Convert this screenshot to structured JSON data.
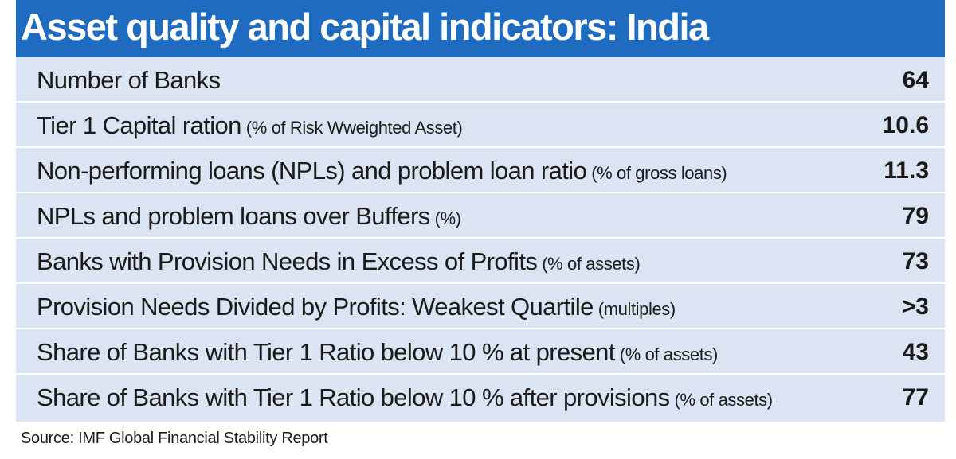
{
  "chart_data": {
    "type": "table",
    "title": "Asset quality and capital indicators: India",
    "rows": [
      {
        "label": "Number of Banks",
        "note": "",
        "value": "64"
      },
      {
        "label": "Tier 1 Capital ration",
        "note": "(% of Risk Wweighted Asset)",
        "value": "10.6"
      },
      {
        "label": "Non-performing loans (NPLs) and problem loan ratio",
        "note": "(% of gross loans)",
        "value": "11.3"
      },
      {
        "label": "NPLs and problem loans over Buffers",
        "note": "(%)",
        "value": "79"
      },
      {
        "label": "Banks with Provision Needs in Excess of Profits",
        "note": "(% of assets)",
        "value": "73"
      },
      {
        "label": "Provision Needs Divided by Profits: Weakest Quartile",
        "note": "(multiples)",
        "value": ">3"
      },
      {
        "label": "Share of Banks with Tier 1 Ratio below 10 % at present",
        "note": "(% of assets)",
        "value": "43"
      },
      {
        "label": "Share of Banks with Tier 1 Ratio below 10 % after provisions",
        "note": "(% of assets)",
        "value": "77"
      }
    ],
    "source": "Source: IMF Global Financial Stability Report"
  },
  "colors": {
    "header_bg": "#1e6bc0",
    "body_bg": "#dbe4f2",
    "text": "#1a1a1a"
  }
}
